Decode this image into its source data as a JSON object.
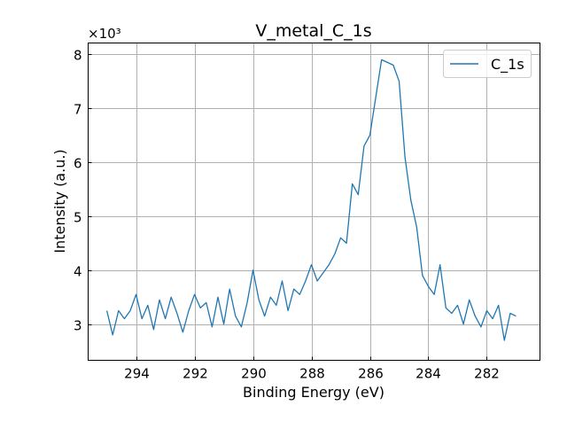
{
  "chart_data": {
    "type": "line",
    "title": "V_metal_C_1s",
    "xlabel": "Binding Energy (eV)",
    "ylabel": "Intensity (a.u.)",
    "y_multiplier_label": "×10³",
    "y_scale": 1000,
    "xlim": [
      295.64,
      280.18
    ],
    "ylim": [
      2330,
      8210
    ],
    "x_ticks": [
      294,
      292,
      290,
      288,
      286,
      284,
      282
    ],
    "x_tick_labels": [
      "294",
      "292",
      "290",
      "288",
      "286",
      "284",
      "282"
    ],
    "y_ticks": [
      3000,
      4000,
      5000,
      6000,
      7000,
      8000
    ],
    "y_tick_labels": [
      "3",
      "4",
      "5",
      "6",
      "7",
      "8"
    ],
    "grid": true,
    "legend": {
      "position": "top-right",
      "entries": [
        "C_1s"
      ]
    },
    "series": [
      {
        "name": "C_1s",
        "color": "#1f77b4",
        "x": [
          295.0,
          294.8,
          294.6,
          294.4,
          294.2,
          294.0,
          293.8,
          293.6,
          293.4,
          293.2,
          293.0,
          292.8,
          292.6,
          292.4,
          292.2,
          292.0,
          291.8,
          291.6,
          291.4,
          291.2,
          291.0,
          290.8,
          290.6,
          290.4,
          290.2,
          290.0,
          289.8,
          289.6,
          289.4,
          289.2,
          289.0,
          288.8,
          288.6,
          288.4,
          288.2,
          288.0,
          287.8,
          287.6,
          287.4,
          287.2,
          287.0,
          286.8,
          286.6,
          286.4,
          286.2,
          286.0,
          285.8,
          285.6,
          285.4,
          285.2,
          285.0,
          284.8,
          284.6,
          284.4,
          284.2,
          284.0,
          283.8,
          283.6,
          283.4,
          283.2,
          283.0,
          282.8,
          282.6,
          282.4,
          282.2,
          282.0,
          281.8,
          281.6,
          281.4,
          281.2,
          281.0
        ],
        "y": [
          3250,
          2800,
          3250,
          3100,
          3250,
          3550,
          3100,
          3350,
          2900,
          3450,
          3100,
          3500,
          3200,
          2850,
          3250,
          3550,
          3300,
          3400,
          2950,
          3500,
          3000,
          3650,
          3150,
          2950,
          3400,
          4000,
          3450,
          3150,
          3500,
          3350,
          3800,
          3250,
          3650,
          3550,
          3800,
          4100,
          3800,
          3950,
          4100,
          4300,
          4600,
          4500,
          5600,
          5400,
          6300,
          6500,
          7200,
          7900,
          7850,
          7800,
          7500,
          6100,
          5300,
          4800,
          3900,
          3700,
          3550,
          4100,
          3300,
          3200,
          3350,
          3000,
          3450,
          3150,
          2950,
          3250,
          3100,
          3350,
          2700,
          3200,
          3150
        ]
      }
    ]
  }
}
